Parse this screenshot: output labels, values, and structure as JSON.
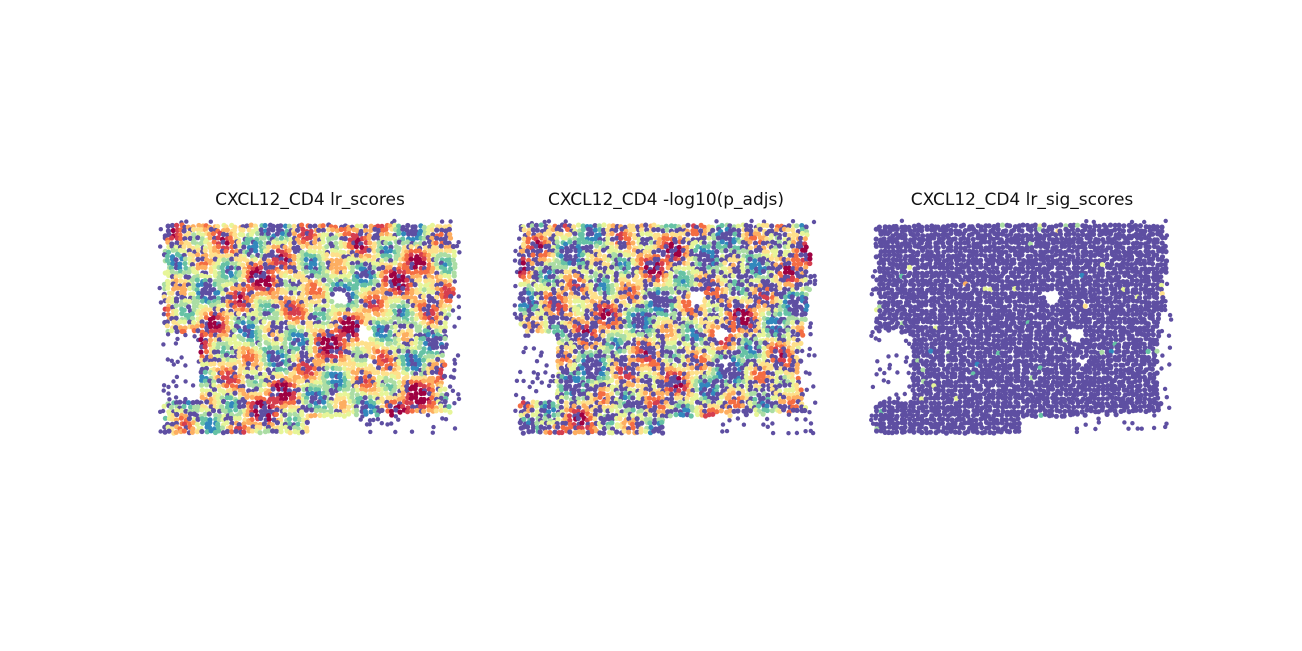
{
  "colormap": [
    "#5e4fa2",
    "#3288bd",
    "#66c2a5",
    "#abdda4",
    "#e6f598",
    "#fee08b",
    "#fdae61",
    "#f46d43",
    "#d53e4f",
    "#9e0142"
  ],
  "chart_data": [
    {
      "type": "scatter",
      "title": "CXCL12_CD4 lr_scores",
      "xlabel": "",
      "ylabel": "",
      "axes": "off",
      "colormap": "Spectral_r",
      "value_profile": {
        "low_fraction": 0.2,
        "mean_level": 0.45,
        "hotspot_density": "high"
      },
      "dominant_colors": [
        "#3288bd",
        "#66c2a5",
        "#abdda4",
        "#e6f598"
      ]
    },
    {
      "type": "scatter",
      "title": "CXCL12_CD4 -log10(p_adjs)",
      "xlabel": "",
      "ylabel": "",
      "axes": "off",
      "colormap": "Spectral_r",
      "value_profile": {
        "low_fraction": 0.35,
        "mean_level": 0.4,
        "hotspot_density": "high"
      },
      "dominant_colors": [
        "#5e4fa2",
        "#3288bd",
        "#66c2a5",
        "#abdda4"
      ]
    },
    {
      "type": "scatter",
      "title": "CXCL12_CD4 lr_sig_scores",
      "xlabel": "",
      "ylabel": "",
      "axes": "off",
      "colormap": "Spectral_r",
      "value_profile": {
        "low_fraction": 0.85,
        "mean_level": 0.1,
        "hotspot_density": "sparse"
      },
      "dominant_colors": [
        "#5e4fa2"
      ]
    }
  ]
}
